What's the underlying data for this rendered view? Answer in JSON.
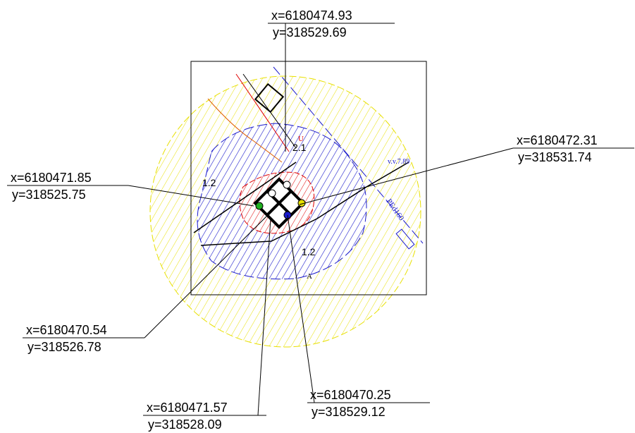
{
  "callouts": [
    {
      "x": "x=6180474.93",
      "y": "y=318529.69"
    },
    {
      "x": "x=6180472.31",
      "y": "y=318531.74"
    },
    {
      "x": "x=6180471.85",
      "y": "y=318525.75"
    },
    {
      "x": "x=6180470.54",
      "y": "y=318526.78"
    },
    {
      "x": "x=6180471.57",
      "y": "y=318528.09"
    },
    {
      "x": "x=6180470.25",
      "y": "y=318529.12"
    }
  ],
  "annotations": [
    "2.1",
    "1.2",
    "1.2",
    "v.v.7.89",
    "PEd160",
    "A",
    "U"
  ]
}
